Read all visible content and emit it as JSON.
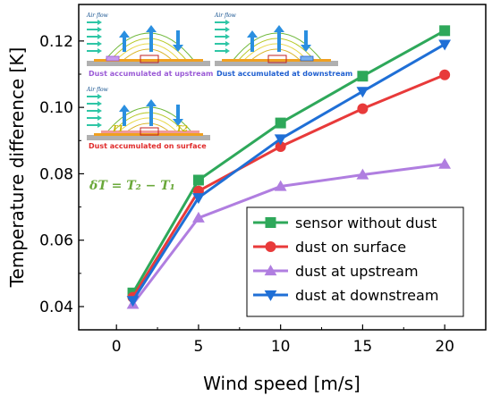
{
  "chart_data": {
    "type": "line",
    "xlabel": "Wind speed [m/s]",
    "ylabel": "Temperature difference [K]",
    "xlim": [
      -2.3,
      22.5
    ],
    "ylim": [
      0.033,
      0.131
    ],
    "xticks": [
      0,
      5,
      10,
      15,
      20
    ],
    "yticks": [
      0.04,
      0.06,
      0.08,
      0.1,
      0.12
    ],
    "xtick_labels": [
      "0",
      "5",
      "10",
      "15",
      "20"
    ],
    "ytick_labels": [
      "0.04",
      "0.06",
      "0.08",
      "0.10",
      "0.12"
    ],
    "legend_position": "bottom-right",
    "x": [
      1,
      5,
      10,
      15,
      20
    ],
    "series": [
      {
        "name": "sensor without dust",
        "color": "#2ea85a",
        "marker": "square",
        "values": [
          0.0441,
          0.0781,
          0.0953,
          0.1094,
          0.1231
        ]
      },
      {
        "name": "dust on surface",
        "color": "#e83a3a",
        "marker": "circle",
        "values": [
          0.0428,
          0.0748,
          0.0882,
          0.0996,
          0.1098
        ]
      },
      {
        "name": "dust at upstream",
        "color": "#b07ee0",
        "marker": "triangle-up",
        "values": [
          0.0407,
          0.0667,
          0.0762,
          0.0797,
          0.0829
        ]
      },
      {
        "name": "dust at downstream",
        "color": "#1f6fd6",
        "marker": "triangle-down",
        "values": [
          0.0418,
          0.0728,
          0.0905,
          0.1048,
          0.119
        ]
      }
    ]
  },
  "insets": [
    {
      "caption": "Dust accumulated at upstream",
      "caption_color": "#9a5ad6",
      "airflow_label": "Air flow"
    },
    {
      "caption": "Dust accumulated at downstream",
      "caption_color": "#1f5fd0",
      "airflow_label": "Air flow"
    },
    {
      "caption": "Dust accumulated on surface",
      "caption_color": "#e02a2a",
      "airflow_label": "Air flow",
      "t1_label": "T1",
      "t2_label": "T2"
    }
  ],
  "formula": "δT = T₂ − T₁"
}
